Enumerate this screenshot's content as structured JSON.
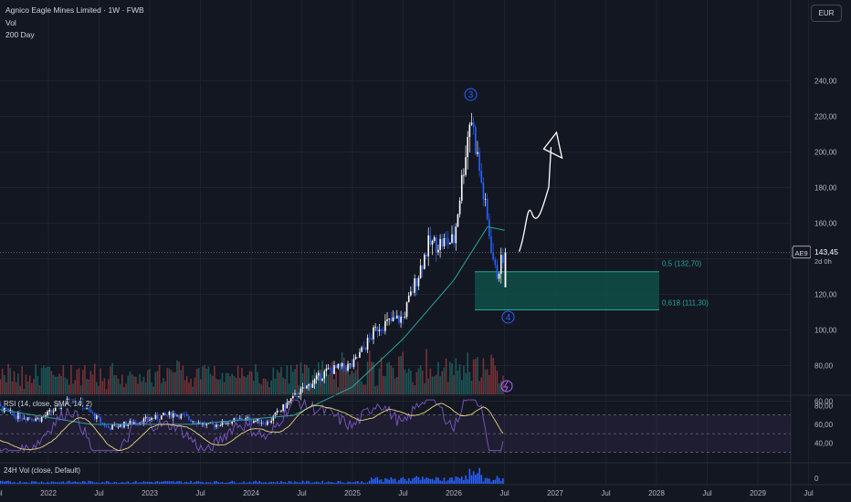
{
  "header": {
    "title": "Agnico Eagle Mines Limited · 1W · FWB",
    "vol_label": "Vol",
    "ma_label": "200 Day"
  },
  "currency_button": "EUR",
  "price_axis": {
    "ticks": [
      "240,00",
      "220,00",
      "200,00",
      "180,00",
      "160,00",
      "140,00",
      "120,00",
      "100,00",
      "80,00",
      "60,00"
    ],
    "symbol_tag": "AE9",
    "last_price": "143,45",
    "countdown": "2d 0h"
  },
  "fib_labels": {
    "level_05": "0,5 (132,70)",
    "level_0618": "0,618 (111,30)"
  },
  "wave_labels": {
    "wave3": "3",
    "wave4": "4"
  },
  "rsi": {
    "legend": "RSI (14, close, SMA, 14, 2)",
    "ticks": [
      "80,00",
      "60,00",
      "40,00"
    ]
  },
  "vol24h": {
    "legend": "24H Vol (close, Default)",
    "ticks": [
      "0"
    ]
  },
  "time_axis": {
    "labels": [
      "Jul",
      "2022",
      "Jul",
      "2023",
      "Jul",
      "2024",
      "Jul",
      "2025",
      "Jul",
      "2026",
      "Jul",
      "2027",
      "Jul",
      "2028",
      "Jul",
      "2029",
      "Jul"
    ]
  },
  "colors": {
    "background": "#131722",
    "up_candle": "#ffffff",
    "down_candle": "#2962ff",
    "ma_line": "#26a69a",
    "fib_zone": "#0f4f46",
    "rsi_line": "#7e57c2",
    "rsi_ma": "#e8d57a",
    "axis_text": "#b2b5be"
  },
  "chart_data": {
    "type": "candlestick",
    "title": "Agnico Eagle Mines Limited · 1W · FWB",
    "currency": "EUR",
    "price_range": [
      45,
      250
    ],
    "last_price": 143.45,
    "price_path": [
      {
        "date": "2021-05",
        "close": 62
      },
      {
        "date": "2021-09",
        "close": 52
      },
      {
        "date": "2021-12",
        "close": 50
      },
      {
        "date": "2022-04",
        "close": 62
      },
      {
        "date": "2022-08",
        "close": 45
      },
      {
        "date": "2022-12",
        "close": 49
      },
      {
        "date": "2023-04",
        "close": 53
      },
      {
        "date": "2023-08",
        "close": 46
      },
      {
        "date": "2023-12",
        "close": 50
      },
      {
        "date": "2024-03",
        "close": 48
      },
      {
        "date": "2024-06",
        "close": 62
      },
      {
        "date": "2024-10",
        "close": 77
      },
      {
        "date": "2025-01",
        "close": 80
      },
      {
        "date": "2025-04",
        "close": 102
      },
      {
        "date": "2025-07",
        "close": 107
      },
      {
        "date": "2025-10",
        "close": 148
      },
      {
        "date": "2026-01",
        "close": 150
      },
      {
        "date": "2026-03",
        "close": 222
      },
      {
        "date": "2026-05",
        "close": 160
      },
      {
        "date": "2026-06",
        "close": 130
      },
      {
        "date": "2026-07",
        "close": 143.45
      }
    ],
    "moving_average_200": [
      {
        "date": "2021-05",
        "value": 57
      },
      {
        "date": "2022-06",
        "value": 47
      },
      {
        "date": "2023-06",
        "value": 47
      },
      {
        "date": "2024-06",
        "value": 52
      },
      {
        "date": "2025-01",
        "value": 68
      },
      {
        "date": "2025-07",
        "value": 95
      },
      {
        "date": "2026-01",
        "value": 128
      },
      {
        "date": "2026-05",
        "value": 158
      },
      {
        "date": "2026-07",
        "value": 156
      }
    ],
    "fibonacci": [
      {
        "level": 0.5,
        "price": 132.7
      },
      {
        "level": 0.618,
        "price": 111.3
      }
    ],
    "annotations": [
      {
        "label": "3",
        "date": "2026-03",
        "price": 222
      },
      {
        "label": "4",
        "date": "2026-07",
        "price": 111.3
      }
    ],
    "projection": [
      {
        "date": "2026-07",
        "price": 143
      },
      {
        "date": "2026-09",
        "price": 170
      },
      {
        "date": "2026-11",
        "price": 212
      }
    ],
    "rsi": {
      "period": 14,
      "range": [
        20,
        90
      ],
      "levels": [
        70,
        50,
        30
      ],
      "last": 42
    }
  }
}
